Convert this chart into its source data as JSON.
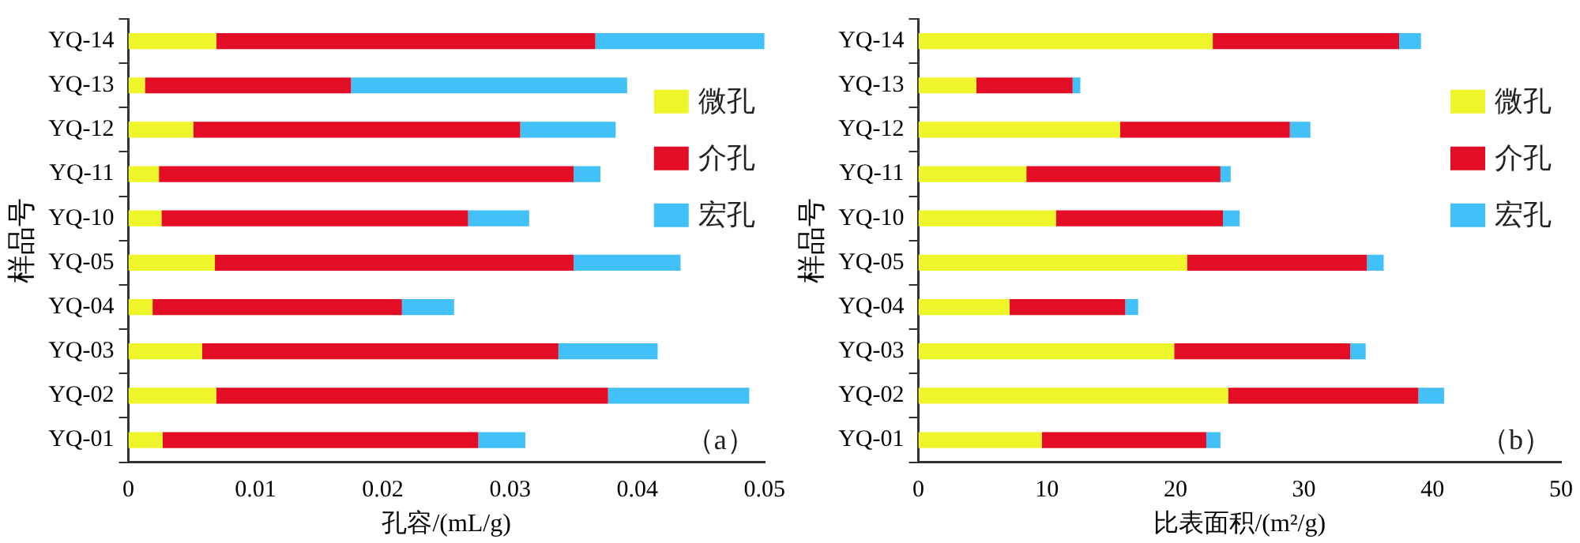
{
  "chart_data": [
    {
      "type": "bar",
      "orientation": "horizontal",
      "stacked": true,
      "xlabel": "孔容/(mL/g)",
      "ylabel": "样品号",
      "categories": [
        "YQ-14",
        "YQ-13",
        "YQ-12",
        "YQ-11",
        "YQ-10",
        "YQ-05",
        "YQ-04",
        "YQ-03",
        "YQ-02",
        "YQ-01"
      ],
      "series": [
        {
          "name": "微孔",
          "color": "#eef52a",
          "values": [
            0.0069,
            0.0013,
            0.0051,
            0.0024,
            0.0026,
            0.0068,
            0.0019,
            0.0058,
            0.0069,
            0.0027
          ]
        },
        {
          "name": "介孔",
          "color": "#e30d25",
          "values": [
            0.0298,
            0.0162,
            0.0257,
            0.0326,
            0.0241,
            0.0282,
            0.0196,
            0.028,
            0.0308,
            0.0248
          ]
        },
        {
          "name": "宏孔",
          "color": "#42c0f8",
          "values": [
            0.0133,
            0.0217,
            0.0075,
            0.0021,
            0.0048,
            0.0084,
            0.0041,
            0.0078,
            0.0111,
            0.0037
          ]
        }
      ],
      "xlim": [
        0,
        0.05
      ],
      "xticks": [
        0,
        0.01,
        0.02,
        0.03,
        0.04,
        0.05
      ],
      "legend": "right",
      "grid": false,
      "annotations": [
        "（a）"
      ]
    },
    {
      "type": "bar",
      "orientation": "horizontal",
      "stacked": true,
      "xlabel": "比表面积/(m²/g)",
      "ylabel": "样品号",
      "categories": [
        "YQ-14",
        "YQ-13",
        "YQ-12",
        "YQ-11",
        "YQ-10",
        "YQ-05",
        "YQ-04",
        "YQ-03",
        "YQ-02",
        "YQ-01"
      ],
      "series": [
        {
          "name": "微孔",
          "color": "#eef52a",
          "values": [
            22.9,
            4.5,
            15.7,
            8.4,
            10.7,
            20.9,
            7.1,
            19.9,
            24.1,
            9.6
          ]
        },
        {
          "name": "介孔",
          "color": "#e30d25",
          "values": [
            14.5,
            7.5,
            13.2,
            15.1,
            13.0,
            14.0,
            9.0,
            13.7,
            14.8,
            12.8
          ]
        },
        {
          "name": "宏孔",
          "color": "#42c0f8",
          "values": [
            1.7,
            0.6,
            1.6,
            0.8,
            1.3,
            1.3,
            1.0,
            1.2,
            2.0,
            1.1
          ]
        }
      ],
      "xlim": [
        0,
        50
      ],
      "xticks": [
        0,
        10,
        20,
        30,
        40,
        50
      ],
      "legend": "right",
      "grid": false,
      "annotations": [
        "（b）"
      ]
    }
  ]
}
